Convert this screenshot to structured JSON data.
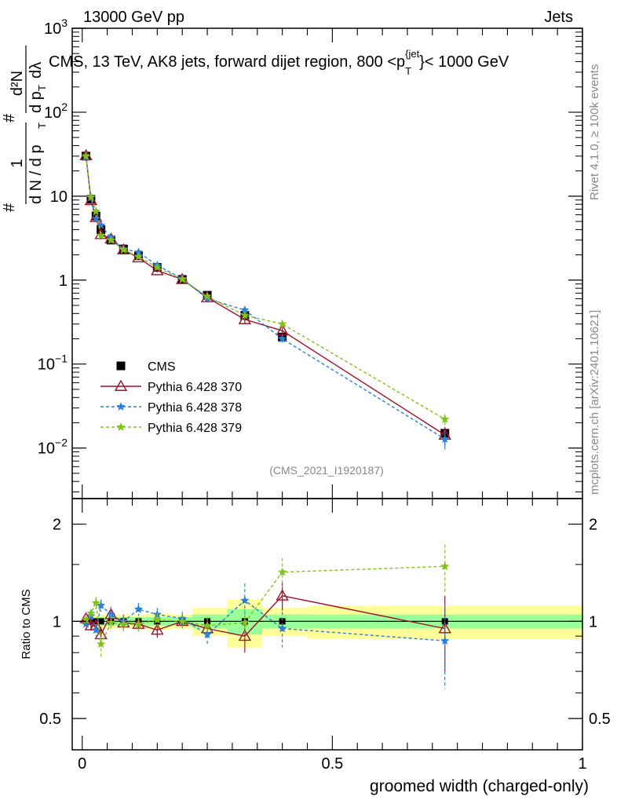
{
  "header": {
    "energy_label": "13000 GeV pp",
    "category_label": "Jets"
  },
  "side_labels": {
    "rivet": "Rivet 4.1.0, ≥ 100k events",
    "mcplots": "mcplots.cern.ch [arXiv:2401.10621]"
  },
  "chart_data": [
    {
      "type": "line",
      "panel": "main",
      "title": "CMS, 13 TeV, AK8 jets, forward dijet region, 800 <p_T^{jet}< 1000 GeV",
      "title_main": "CMS, 13 TeV, AK8 jets, forward dijet region, 800 <p",
      "title_sub": "T",
      "title_sup": "{jet",
      "title_tail": "}< 1000 GeV",
      "ylabel": "1/dN/dp_T  d²N/dp_T dλ",
      "ylabel_parts": {
        "num": "1",
        "den": "d N / d p",
        "hash": "#",
        "d2n": "d²N",
        "dpt": "d p",
        "dl": "dλ",
        "t": "T"
      },
      "yscale": "log",
      "ylim": [
        0.0025,
        1000
      ],
      "xlim": [
        -0.02,
        1.0
      ],
      "y_ticks": [
        {
          "value": 0.01,
          "label": "10",
          "exp": "−2"
        },
        {
          "value": 0.1,
          "label": "10",
          "exp": "−1"
        },
        {
          "value": 1,
          "label": "1",
          "exp": ""
        },
        {
          "value": 10,
          "label": "10",
          "exp": ""
        },
        {
          "value": 100,
          "label": "10",
          "exp": "2"
        },
        {
          "value": 1000,
          "label": "10",
          "exp": "3"
        }
      ],
      "watermark": "(CMS_2021_I1920187)",
      "legend_position": "lower-left",
      "x": [
        0.0075,
        0.0175,
        0.0275,
        0.0375,
        0.0575,
        0.0825,
        0.1125,
        0.15,
        0.2,
        0.25,
        0.325,
        0.4,
        0.725
      ],
      "series": [
        {
          "name": "CMS",
          "color": "#000000",
          "marker": "square",
          "line": "none",
          "values": [
            30,
            9.2,
            5.8,
            4.0,
            3.0,
            2.35,
            1.95,
            1.42,
            1.02,
            0.66,
            0.38,
            0.21,
            0.015
          ],
          "errors": [
            0.03,
            0.04,
            0.05,
            0.05,
            0.05,
            0.05,
            0.05,
            0.06,
            0.05,
            0.08,
            0.12,
            0.1,
            0.15
          ]
        },
        {
          "name": "Pythia 6.428 370",
          "color": "#a0102a",
          "marker": "triangle-open",
          "line": "solid",
          "values": [
            30.5,
            8.9,
            5.6,
            3.5,
            3.1,
            2.3,
            1.85,
            1.3,
            1.02,
            0.62,
            0.34,
            0.25,
            0.0143
          ],
          "errors": [
            0.02,
            0.03,
            0.04,
            0.05,
            0.05,
            0.04,
            0.04,
            0.05,
            0.05,
            0.05,
            0.1,
            0.1,
            0.25
          ]
        },
        {
          "name": "Pythia 6.428 378",
          "color": "#2a7fd8",
          "marker": "star",
          "line": "dashed",
          "values": [
            29.5,
            9.6,
            5.4,
            4.5,
            3.2,
            2.35,
            2.15,
            1.5,
            1.04,
            0.6,
            0.44,
            0.2,
            0.0128
          ],
          "errors": [
            0.02,
            0.03,
            0.04,
            0.05,
            0.05,
            0.04,
            0.04,
            0.05,
            0.05,
            0.06,
            0.1,
            0.1,
            0.25
          ]
        },
        {
          "name": "Pythia 6.428 379",
          "color": "#7fc21a",
          "marker": "star",
          "line": "dashed",
          "values": [
            30.2,
            9.8,
            6.6,
            3.4,
            3.0,
            2.3,
            1.9,
            1.42,
            1.02,
            0.64,
            0.38,
            0.3,
            0.022
          ],
          "errors": [
            0.02,
            0.03,
            0.04,
            0.05,
            0.05,
            0.04,
            0.04,
            0.05,
            0.05,
            0.06,
            0.1,
            0.1,
            0.15
          ]
        }
      ]
    },
    {
      "type": "line",
      "panel": "ratio",
      "xlabel": "groomed width (charged-only)",
      "ylabel": "Ratio to CMS",
      "yscale": "log",
      "ylim": [
        0.4,
        2.4
      ],
      "xlim": [
        -0.02,
        1.0
      ],
      "x_ticks": [
        {
          "value": 0,
          "label": "0"
        },
        {
          "value": 0.5,
          "label": "0.5"
        },
        {
          "value": 1,
          "label": "1"
        }
      ],
      "y_ticks": [
        {
          "value": 0.5,
          "label": "0.5"
        },
        {
          "value": 1,
          "label": "1"
        },
        {
          "value": 2,
          "label": "2"
        }
      ],
      "bins": [
        {
          "lo": 0.0,
          "hi": 0.015,
          "stat": 0.02,
          "tot": 0.03
        },
        {
          "lo": 0.015,
          "hi": 0.025,
          "stat": 0.02,
          "tot": 0.04
        },
        {
          "lo": 0.025,
          "hi": 0.035,
          "stat": 0.03,
          "tot": 0.05
        },
        {
          "lo": 0.035,
          "hi": 0.05,
          "stat": 0.03,
          "tot": 0.05
        },
        {
          "lo": 0.05,
          "hi": 0.07,
          "stat": 0.03,
          "tot": 0.05
        },
        {
          "lo": 0.07,
          "hi": 0.1,
          "stat": 0.03,
          "tot": 0.05
        },
        {
          "lo": 0.1,
          "hi": 0.13,
          "stat": 0.03,
          "tot": 0.05
        },
        {
          "lo": 0.13,
          "hi": 0.18,
          "stat": 0.03,
          "tot": 0.06
        },
        {
          "lo": 0.18,
          "hi": 0.22,
          "stat": 0.03,
          "tot": 0.05
        },
        {
          "lo": 0.22,
          "hi": 0.29,
          "stat": 0.05,
          "tot": 0.1
        },
        {
          "lo": 0.29,
          "hi": 0.36,
          "stat": 0.09,
          "tot": 0.17
        },
        {
          "lo": 0.36,
          "hi": 0.45,
          "stat": 0.05,
          "tot": 0.1
        },
        {
          "lo": 0.45,
          "hi": 1.0,
          "stat": 0.05,
          "tot": 0.12
        }
      ],
      "x": [
        0.0075,
        0.0175,
        0.0275,
        0.0375,
        0.0575,
        0.0825,
        0.1125,
        0.15,
        0.2,
        0.25,
        0.325,
        0.4,
        0.725
      ],
      "series": [
        {
          "name": "Pythia 6.428 370",
          "color": "#a0102a",
          "marker": "triangle-open",
          "line": "solid",
          "values": [
            1.02,
            0.97,
            0.97,
            0.91,
            1.05,
            0.99,
            0.98,
            0.94,
            1.0,
            0.95,
            0.9,
            1.2,
            0.95
          ],
          "errors": [
            0.02,
            0.03,
            0.04,
            0.05,
            0.05,
            0.04,
            0.05,
            0.05,
            0.05,
            0.06,
            0.1,
            0.12,
            0.25
          ]
        },
        {
          "name": "Pythia 6.428 378",
          "color": "#2a7fd8",
          "marker": "star",
          "line": "dashed",
          "values": [
            0.98,
            1.04,
            0.94,
            1.12,
            1.05,
            1.0,
            1.09,
            1.05,
            1.02,
            0.91,
            1.16,
            0.95,
            0.87
          ],
          "errors": [
            0.02,
            0.03,
            0.04,
            0.05,
            0.06,
            0.05,
            0.05,
            0.05,
            0.05,
            0.07,
            0.15,
            0.12,
            0.25
          ]
        },
        {
          "name": "Pythia 6.428 379",
          "color": "#7fc21a",
          "marker": "star",
          "line": "dashed",
          "values": [
            1.01,
            1.06,
            1.14,
            0.85,
            0.99,
            0.98,
            0.98,
            1.01,
            1.0,
            0.97,
            0.99,
            1.42,
            1.48
          ],
          "errors": [
            0.02,
            0.03,
            0.05,
            0.08,
            0.06,
            0.05,
            0.05,
            0.05,
            0.05,
            0.06,
            0.1,
            0.15,
            0.25
          ]
        }
      ]
    }
  ]
}
